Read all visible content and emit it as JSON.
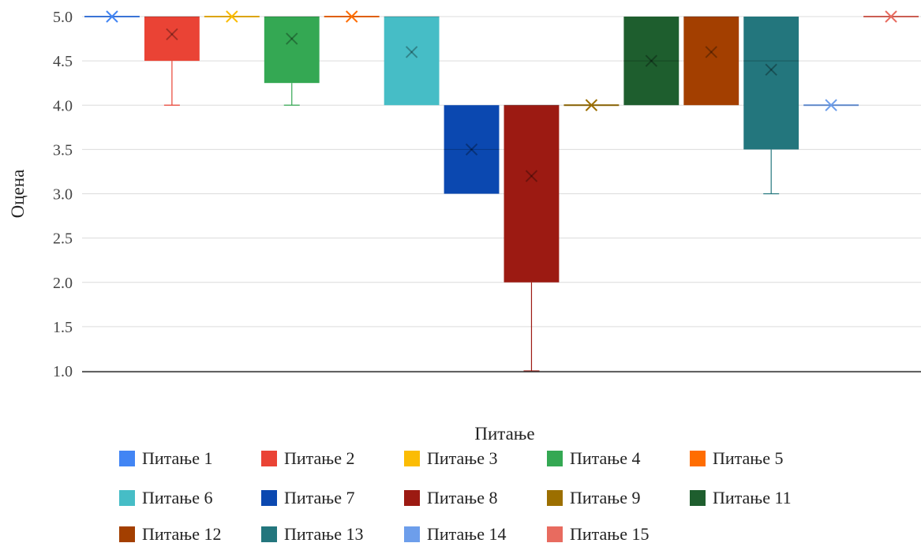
{
  "chart_data": {
    "type": "box",
    "xlabel": "Питање",
    "ylabel": "Оцена",
    "ylim": [
      1.0,
      5.0
    ],
    "yticks": [
      "1.0",
      "1.5",
      "2.0",
      "2.5",
      "3.0",
      "3.5",
      "4.0",
      "4.5",
      "5.0"
    ],
    "grid": true,
    "legend_position": "bottom",
    "series": [
      {
        "name": "Питање 1",
        "color": "#4285f4",
        "min": 5,
        "q1": 5,
        "median": 5,
        "q3": 5,
        "max": 5,
        "mean": 5
      },
      {
        "name": "Питање 2",
        "color": "#ea4335",
        "min": 4,
        "q1": 4.5,
        "median": 5,
        "q3": 5,
        "max": 5,
        "mean": 4.8
      },
      {
        "name": "Питање 3",
        "color": "#fbbc04",
        "min": 5,
        "q1": 5,
        "median": 5,
        "q3": 5,
        "max": 5,
        "mean": 5
      },
      {
        "name": "Питање 4",
        "color": "#34a853",
        "min": 4,
        "q1": 4.25,
        "median": 5,
        "q3": 5,
        "max": 5,
        "mean": 4.75
      },
      {
        "name": "Питање 5",
        "color": "#ff6d01",
        "min": 5,
        "q1": 5,
        "median": 5,
        "q3": 5,
        "max": 5,
        "mean": 5
      },
      {
        "name": "Питање 6",
        "color": "#46bdc6",
        "min": 4,
        "q1": 4,
        "median": 5,
        "q3": 5,
        "max": 5,
        "mean": 4.6
      },
      {
        "name": "Питање 7",
        "color": "#0b48b0",
        "min": 3,
        "q1": 3,
        "median": 3.5,
        "q3": 4,
        "max": 4,
        "mean": 3.5
      },
      {
        "name": "Питање 8",
        "color": "#9c1a12",
        "min": 1,
        "q1": 2,
        "median": 4,
        "q3": 4,
        "max": 4,
        "mean": 3.2
      },
      {
        "name": "Питање 9",
        "color": "#9c6f00",
        "min": 4,
        "q1": 4,
        "median": 4,
        "q3": 4,
        "max": 4,
        "mean": 4
      },
      {
        "name": "Питање 11",
        "color": "#1e5e2e",
        "min": 4,
        "q1": 4,
        "median": 4.5,
        "q3": 5,
        "max": 5,
        "mean": 4.5
      },
      {
        "name": "Питање 12",
        "color": "#a33f00",
        "min": 4,
        "q1": 4,
        "median": 5,
        "q3": 5,
        "max": 5,
        "mean": 4.6
      },
      {
        "name": "Питање 13",
        "color": "#23767d",
        "min": 3,
        "q1": 3.5,
        "median": 4.5,
        "q3": 5,
        "max": 5,
        "mean": 4.4
      },
      {
        "name": "Питање 14",
        "color": "#6d9eeb",
        "min": 4,
        "q1": 4,
        "median": 4,
        "q3": 4,
        "max": 4,
        "mean": 4
      },
      {
        "name": "Питање 15",
        "color": "#e86b5f",
        "min": 5,
        "q1": 5,
        "median": 5,
        "q3": 5,
        "max": 5,
        "mean": 5
      }
    ]
  }
}
